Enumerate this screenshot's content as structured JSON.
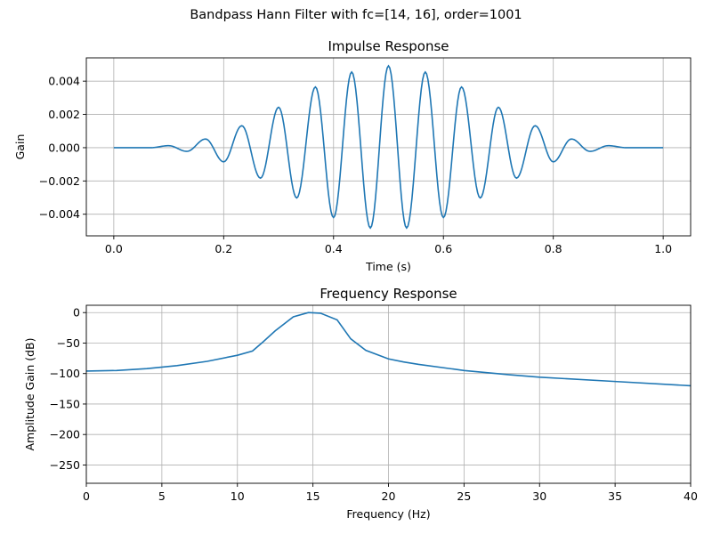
{
  "figure": {
    "title": "Bandpass Hann Filter with fc=[14, 16], order=1001"
  },
  "chart_data": [
    {
      "type": "line",
      "title": "Impulse Response",
      "xlabel": "Time (s)",
      "ylabel": "Gain",
      "xlim": [
        -0.05,
        1.05
      ],
      "ylim": [
        -0.0053,
        0.0054
      ],
      "xticks": [
        0.0,
        0.2,
        0.4,
        0.6,
        0.8,
        1.0
      ],
      "xtick_labels": [
        "0.0",
        "0.2",
        "0.4",
        "0.6",
        "0.8",
        "1.0"
      ],
      "yticks": [
        -0.004,
        -0.002,
        0.0,
        0.002,
        0.004
      ],
      "ytick_labels": [
        "−0.004",
        "−0.002",
        "0.000",
        "0.002",
        "0.004"
      ],
      "grid": true,
      "line_color": "#1f77b4",
      "series": [
        {
          "x": [
            0.0,
            0.067,
            0.1,
            0.133,
            0.167,
            0.2,
            0.233,
            0.267,
            0.3,
            0.333,
            0.367,
            0.4,
            0.433,
            0.467,
            0.5,
            0.533,
            0.567,
            0.6,
            0.633,
            0.667,
            0.7,
            0.733,
            0.767,
            0.8,
            0.833,
            0.867,
            0.9,
            0.933,
            1.0
          ],
          "y": [
            0.0,
            0.0,
            0.00012,
            -0.00022,
            0.00052,
            -0.00085,
            0.00132,
            -0.00183,
            0.00243,
            -0.00302,
            0.00365,
            -0.0042,
            0.00455,
            -0.00483,
            0.00492,
            -0.00483,
            0.00455,
            -0.0042,
            0.00365,
            -0.00302,
            0.00243,
            -0.00183,
            0.00132,
            -0.00085,
            0.00052,
            -0.00022,
            0.00012,
            0.0,
            0.0
          ]
        }
      ]
    },
    {
      "type": "line",
      "title": "Frequency Response",
      "xlabel": "Frequency (Hz)",
      "ylabel": "Amplitude Gain (dB)",
      "xlim": [
        0,
        40
      ],
      "ylim": [
        -280,
        12
      ],
      "xticks": [
        0,
        5,
        10,
        15,
        20,
        25,
        30,
        35,
        40
      ],
      "xtick_labels": [
        "0",
        "5",
        "10",
        "15",
        "20",
        "25",
        "30",
        "35",
        "40"
      ],
      "yticks": [
        -250,
        -200,
        -150,
        -100,
        -50,
        0
      ],
      "ytick_labels": [
        "−250",
        "−200",
        "−150",
        "−100",
        "−50",
        "0"
      ],
      "grid": true,
      "line_color": "#1f77b4",
      "series": [
        {
          "x": [
            0,
            2,
            4,
            6,
            8,
            10,
            11,
            11.7,
            12.5,
            13.7,
            14.7,
            15.5,
            16.6,
            17.5,
            18.5,
            20,
            21,
            22,
            25,
            28,
            30,
            35,
            40
          ],
          "y": [
            -96,
            -95,
            -92,
            -87,
            -80,
            -70,
            -63,
            -48,
            -30,
            -7,
            0,
            -1,
            -12,
            -43,
            -62,
            -76,
            -81,
            -85,
            -95,
            -102,
            -106,
            -113,
            -120
          ]
        }
      ]
    }
  ]
}
